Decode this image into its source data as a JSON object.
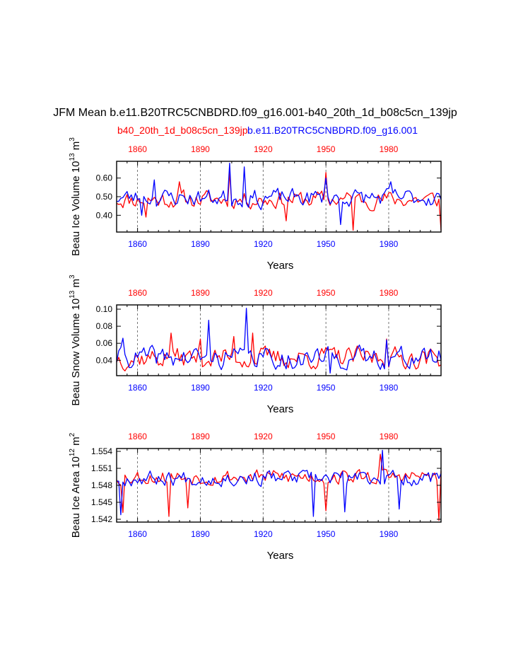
{
  "title": "JFM Mean b.e11.B20TRC5CNBDRD.f09_g16.001-b40_20th_1d_b08c5cn_139jp",
  "legend": {
    "red_case": "b40_20th_1d_b08c5cn_139jp",
    "blue_case": "b.e11.B20TRC5CNBDRD.f09_g16.001"
  },
  "colors": {
    "red": "#ff0000",
    "blue": "#0000ff",
    "axis": "#000000"
  },
  "chart_data": [
    {
      "type": "line",
      "name": "ice-volume",
      "ylabel_main": "Beau Ice Volume 10",
      "ylabel_exp": "13",
      "ylabel_unit": " m",
      "ylabel_unit_exp": "3",
      "xlabel": "Years",
      "xlim": [
        1850,
        2005
      ],
      "ylim": [
        0.31,
        0.69
      ],
      "yticks": [
        0.4,
        0.5,
        0.6
      ],
      "ytick_labels": [
        "0.40",
        "0.50",
        "0.60"
      ],
      "xticks": [
        1860,
        1890,
        1920,
        1950,
        1980
      ],
      "xtick_labels": [
        "1860",
        "1890",
        "1920",
        "1950",
        "1980"
      ],
      "series": [
        {
          "name": "b40_20th_1d_b08c5cn_139jp",
          "color": "#ff0000",
          "base": 0.485,
          "amp": 0.045,
          "spikes": [
            [
              1864,
              0.39
            ],
            [
              1880,
              0.58
            ],
            [
              1904,
              0.63
            ],
            [
              1931,
              0.37
            ],
            [
              1950,
              0.63
            ],
            [
              1963,
              0.32
            ],
            [
              2005,
              0.32
            ]
          ],
          "seed": 11
        },
        {
          "name": "b.e11.B20TRC5CNBDRD.f09_g16.001",
          "color": "#0000ff",
          "base": 0.495,
          "amp": 0.045,
          "spikes": [
            [
              1862,
              0.4
            ],
            [
              1868,
              0.59
            ],
            [
              1904,
              0.68
            ],
            [
              1911,
              0.66
            ],
            [
              1919,
              0.43
            ],
            [
              1950,
              0.6
            ],
            [
              1957,
              0.35
            ],
            [
              1981,
              0.58
            ]
          ],
          "seed": 23
        }
      ]
    },
    {
      "type": "line",
      "name": "snow-volume",
      "ylabel_main": "Beau Snow Volume 10",
      "ylabel_exp": "13",
      "ylabel_unit": " m",
      "ylabel_unit_exp": "3",
      "xlabel": "Years",
      "xlim": [
        1850,
        2005
      ],
      "ylim": [
        0.022,
        0.105
      ],
      "yticks": [
        0.04,
        0.06,
        0.08,
        0.1
      ],
      "ytick_labels": [
        "0.04",
        "0.06",
        "0.08",
        "0.10"
      ],
      "xticks": [
        1860,
        1890,
        1920,
        1950,
        1980
      ],
      "xtick_labels": [
        "1860",
        "1890",
        "1920",
        "1950",
        "1980"
      ],
      "series": [
        {
          "name": "b40_20th_1d_b08c5cn_139jp",
          "color": "#ff0000",
          "base": 0.043,
          "amp": 0.012,
          "spikes": [
            [
              1876,
              0.072
            ],
            [
              1890,
              0.065
            ],
            [
              1906,
              0.068
            ],
            [
              1915,
              0.072
            ],
            [
              1950,
              0.055
            ],
            [
              1979,
              0.065
            ]
          ],
          "seed": 37
        },
        {
          "name": "b.e11.B20TRC5CNBDRD.f09_g16.001",
          "color": "#0000ff",
          "base": 0.043,
          "amp": 0.012,
          "spikes": [
            [
              1853,
              0.066
            ],
            [
              1894,
              0.087
            ],
            [
              1912,
              0.101
            ],
            [
              1931,
              0.03
            ],
            [
              1952,
              0.025
            ],
            [
              1979,
              0.064
            ]
          ],
          "seed": 41
        }
      ]
    },
    {
      "type": "line",
      "name": "ice-area",
      "ylabel_main": "Beau Ice Area 10",
      "ylabel_exp": "12",
      "ylabel_unit": " m",
      "ylabel_unit_exp": "2",
      "xlabel": "Years",
      "xlim": [
        1850,
        2005
      ],
      "ylim": [
        1.5415,
        1.5545
      ],
      "yticks": [
        1.542,
        1.545,
        1.548,
        1.551,
        1.554
      ],
      "ytick_labels": [
        "1.542",
        "1.545",
        "1.548",
        "1.551",
        "1.554"
      ],
      "xticks": [
        1860,
        1890,
        1920,
        1950,
        1980
      ],
      "xtick_labels": [
        "1860",
        "1890",
        "1920",
        "1950",
        "1980"
      ],
      "series": [
        {
          "name": "b40_20th_1d_b08c5cn_139jp",
          "color": "#ff0000",
          "base": 1.5495,
          "amp": 0.0013,
          "spikes": [
            [
              1853,
              1.5432
            ],
            [
              1875,
              1.5425
            ],
            [
              1884,
              1.544
            ],
            [
              1950,
              1.5435
            ],
            [
              1976,
              1.5535
            ],
            [
              2004,
              1.5418
            ]
          ],
          "seed": 53
        },
        {
          "name": "b.e11.B20TRC5CNBDRD.f09_g16.001",
          "color": "#0000ff",
          "base": 1.5493,
          "amp": 0.0013,
          "spikes": [
            [
              1852,
              1.5428
            ],
            [
              1944,
              1.5425
            ],
            [
              1959,
              1.5433
            ],
            [
              1977,
              1.5542
            ],
            [
              1985,
              1.5438
            ]
          ],
          "seed": 67
        }
      ]
    }
  ]
}
